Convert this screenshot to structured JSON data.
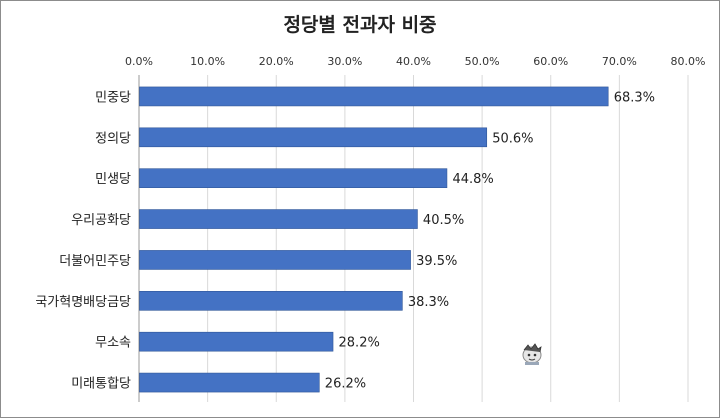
{
  "chart_data": {
    "type": "bar",
    "orientation": "horizontal",
    "title": "정당별 전과자 비중",
    "xlabel": "",
    "ylabel": "",
    "xlim": [
      0,
      80
    ],
    "x_ticks": [
      "0.0%",
      "10.0%",
      "20.0%",
      "30.0%",
      "40.0%",
      "50.0%",
      "60.0%",
      "70.0%",
      "80.0%"
    ],
    "x_axis_position": "top",
    "grid": true,
    "legend": "none",
    "bar_color": "#4472c4",
    "categories": [
      "민중당",
      "정의당",
      "민생당",
      "우리공화당",
      "더불어민주당",
      "국가혁명배당금당",
      "무소속",
      "미래통합당"
    ],
    "values": [
      68.3,
      50.6,
      44.8,
      40.5,
      39.5,
      38.3,
      28.2,
      26.2
    ],
    "data_labels": [
      "68.3%",
      "50.6%",
      "44.8%",
      "40.5%",
      "39.5%",
      "38.3%",
      "28.2%",
      "26.2%"
    ]
  }
}
